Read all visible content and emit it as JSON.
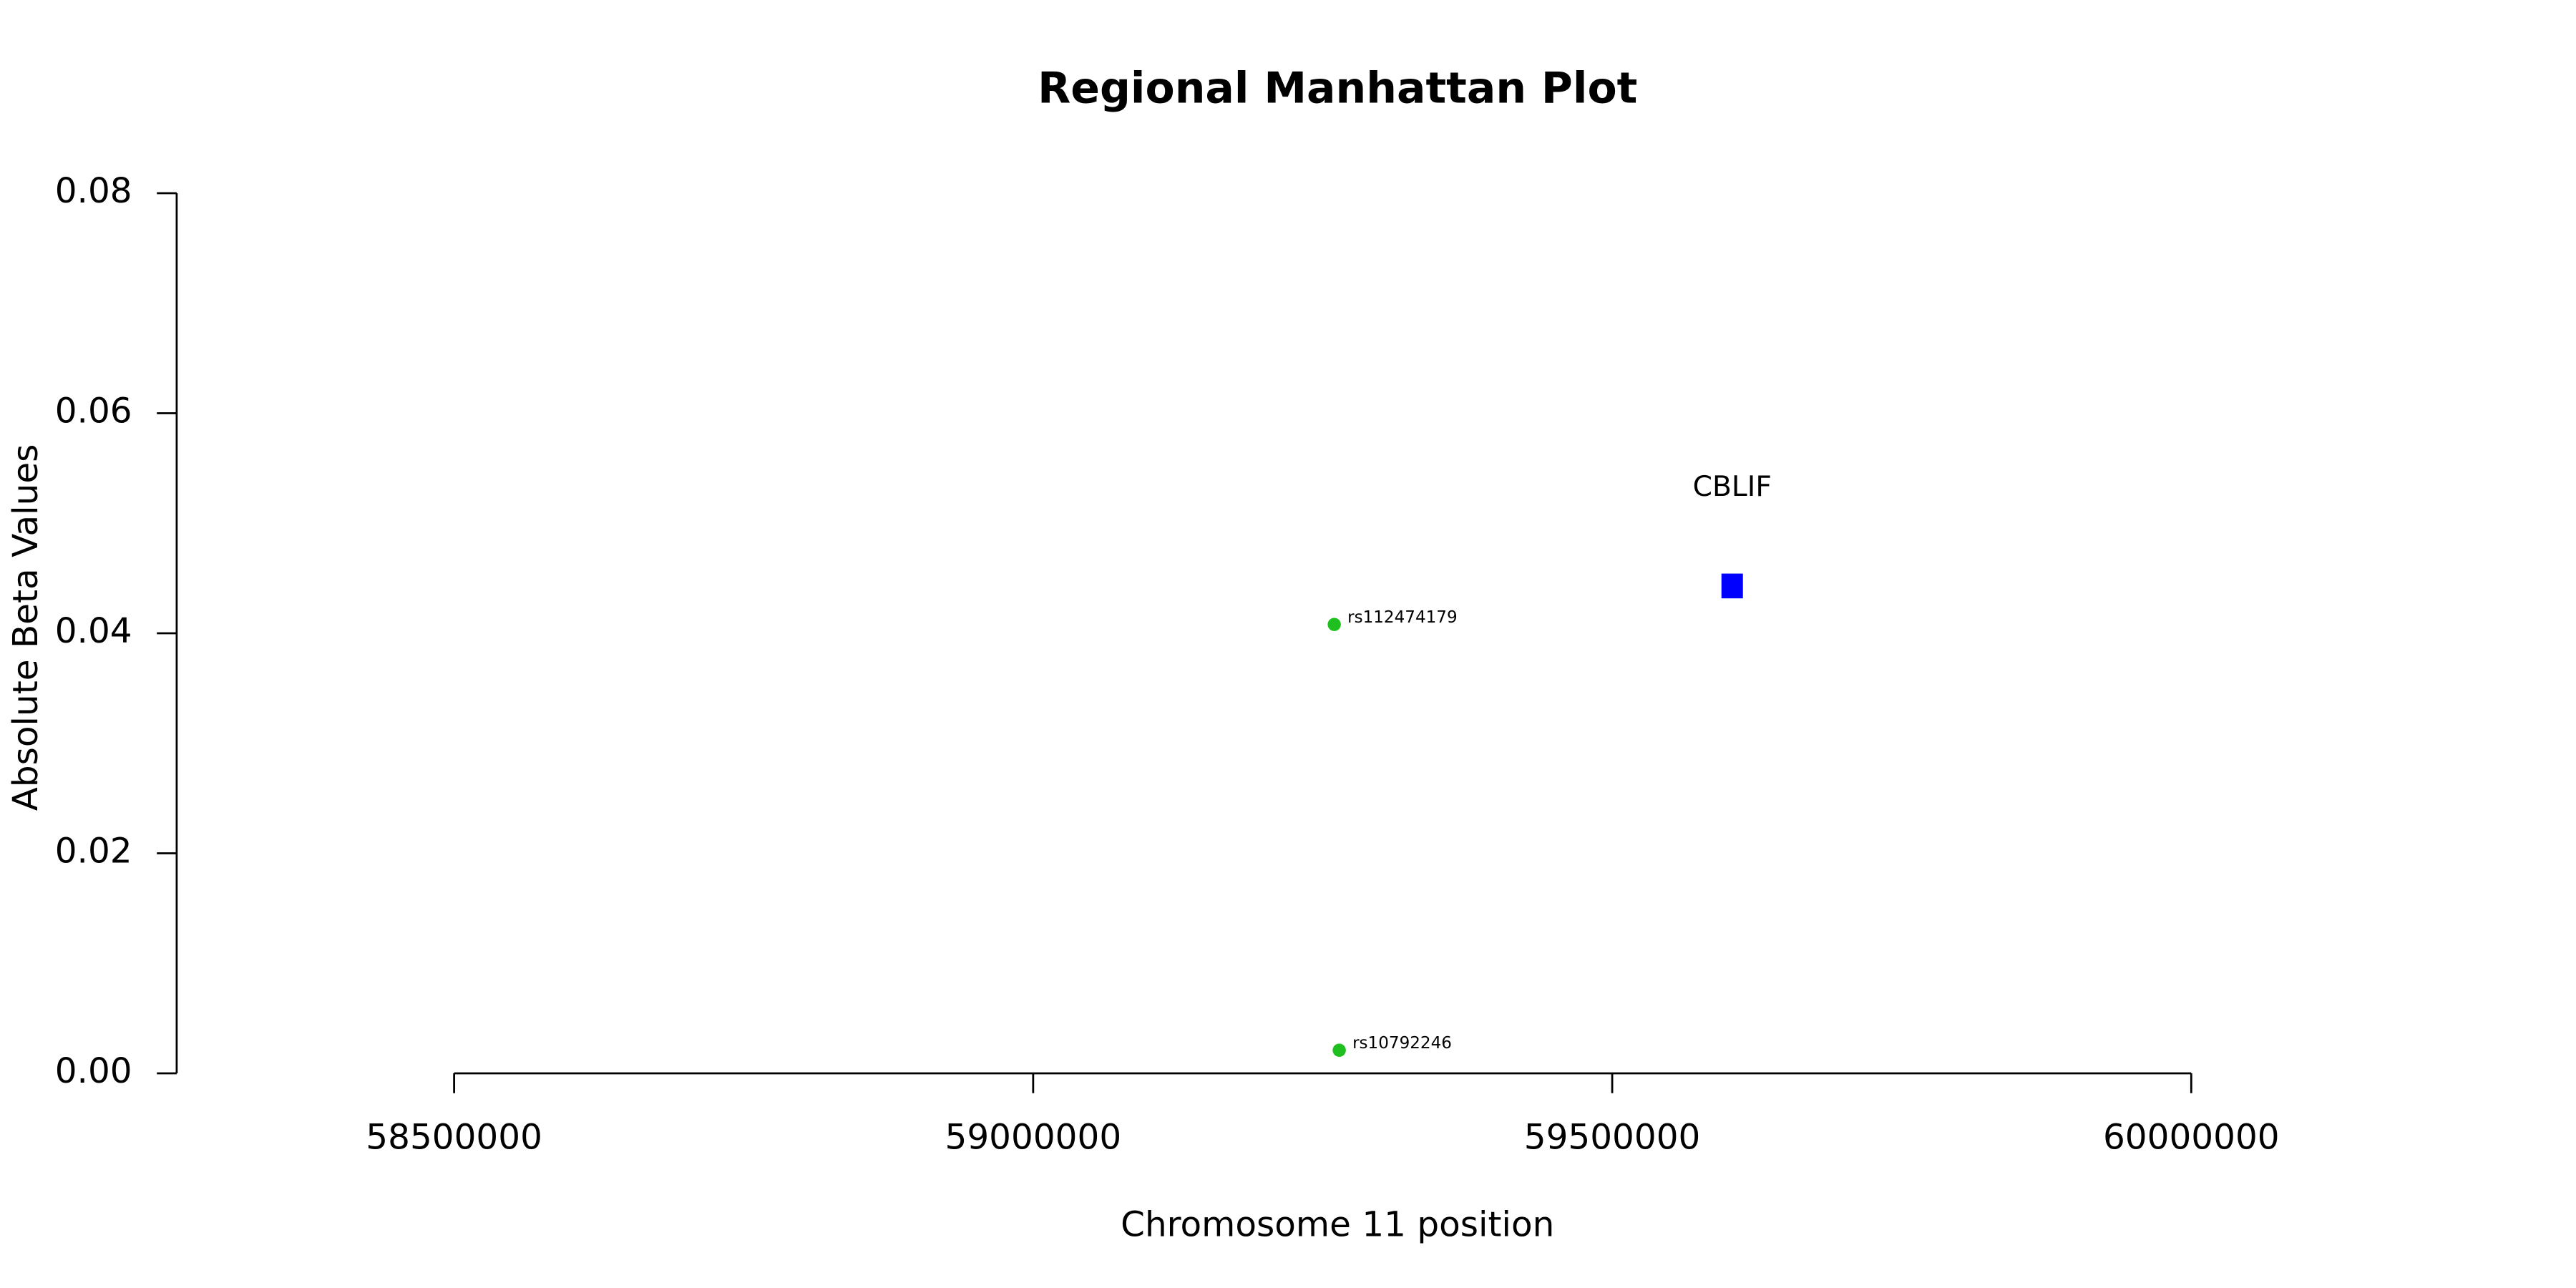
{
  "chart_data": {
    "type": "scatter",
    "title": "Regional Manhattan Plot",
    "x_label": "Chromosome 11 position",
    "y_label": "Absolute Beta Values",
    "xlim": [
      58500000,
      60000000
    ],
    "xticks": [
      58500000,
      59000000,
      59500000,
      60000000
    ],
    "ylim": [
      0,
      0.08
    ],
    "yticks": [
      {
        "value": 0,
        "label": "0.00"
      },
      {
        "value": 0.02,
        "label": "0.02"
      },
      {
        "value": 0.04,
        "label": "0.04"
      },
      {
        "value": 0.06,
        "label": "0.06"
      },
      {
        "value": 0.08,
        "label": "0.08"
      }
    ],
    "series": [
      {
        "color": "#1fbf1f",
        "marker": "circle",
        "x": [
          59260000,
          59264300
        ],
        "values": [
          0.0408,
          0.0021
        ],
        "labels": [
          "rs112474179",
          "rs10792246"
        ]
      },
      {
        "color": "#0000ff",
        "marker": "square",
        "x": [
          59603600
        ],
        "values": [
          0.0443
        ],
        "labels": [
          "CBLIF"
        ]
      }
    ]
  }
}
